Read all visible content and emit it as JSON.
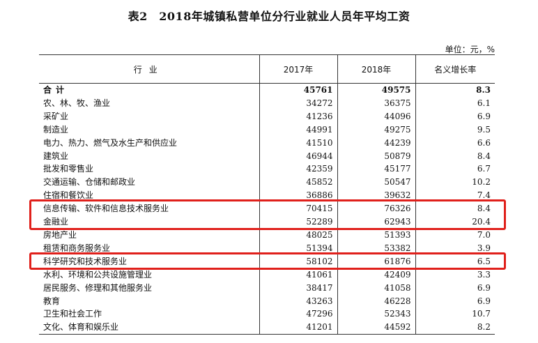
{
  "title": "表2　2018年城镇私营单位分行业就业人员年平均工资",
  "unit": "单位：元，%",
  "headers": {
    "industry": "行业",
    "y2017": "2017年",
    "y2018": "2018年",
    "growth": "名义增长率"
  },
  "rows": [
    {
      "name": "合计",
      "y2017": "45761",
      "y2018": "49575",
      "growth": "8.3"
    },
    {
      "name": "农、林、牧、渔业",
      "y2017": "34272",
      "y2018": "36375",
      "growth": "6.1"
    },
    {
      "name": "采矿业",
      "y2017": "41236",
      "y2018": "44096",
      "growth": "6.9"
    },
    {
      "name": "制造业",
      "y2017": "44991",
      "y2018": "49275",
      "growth": "9.5"
    },
    {
      "name": "电力、热力、燃气及水生产和供应业",
      "y2017": "41510",
      "y2018": "44239",
      "growth": "6.6"
    },
    {
      "name": "建筑业",
      "y2017": "46944",
      "y2018": "50879",
      "growth": "8.4"
    },
    {
      "name": "批发和零售业",
      "y2017": "42359",
      "y2018": "45177",
      "growth": "6.7"
    },
    {
      "name": "交通运输、仓储和邮政业",
      "y2017": "45852",
      "y2018": "50547",
      "growth": "10.2"
    },
    {
      "name": "住宿和餐饮业",
      "y2017": "36886",
      "y2018": "39632",
      "growth": "7.4"
    },
    {
      "name": "信息传输、软件和信息技术服务业",
      "y2017": "70415",
      "y2018": "76326",
      "growth": "8.4"
    },
    {
      "name": "金融业",
      "y2017": "52289",
      "y2018": "62943",
      "growth": "20.4"
    },
    {
      "name": "房地产业",
      "y2017": "48025",
      "y2018": "51393",
      "growth": "7.0"
    },
    {
      "name": "租赁和商务服务业",
      "y2017": "51394",
      "y2018": "53382",
      "growth": "3.9"
    },
    {
      "name": "科学研究和技术服务业",
      "y2017": "58102",
      "y2018": "61876",
      "growth": "6.5"
    },
    {
      "name": "水利、环境和公共设施管理业",
      "y2017": "41061",
      "y2018": "42409",
      "growth": "3.3"
    },
    {
      "name": "居民服务、修理和其他服务业",
      "y2017": "38417",
      "y2018": "41058",
      "growth": "6.9"
    },
    {
      "name": "教育",
      "y2017": "43263",
      "y2018": "46228",
      "growth": "6.9"
    },
    {
      "name": "卫生和社会工作",
      "y2017": "47296",
      "y2018": "52343",
      "growth": "10.7"
    },
    {
      "name": "文化、体育和娱乐业",
      "y2017": "41201",
      "y2018": "44592",
      "growth": "8.2"
    }
  ],
  "highlight_color": "#e0201b"
}
